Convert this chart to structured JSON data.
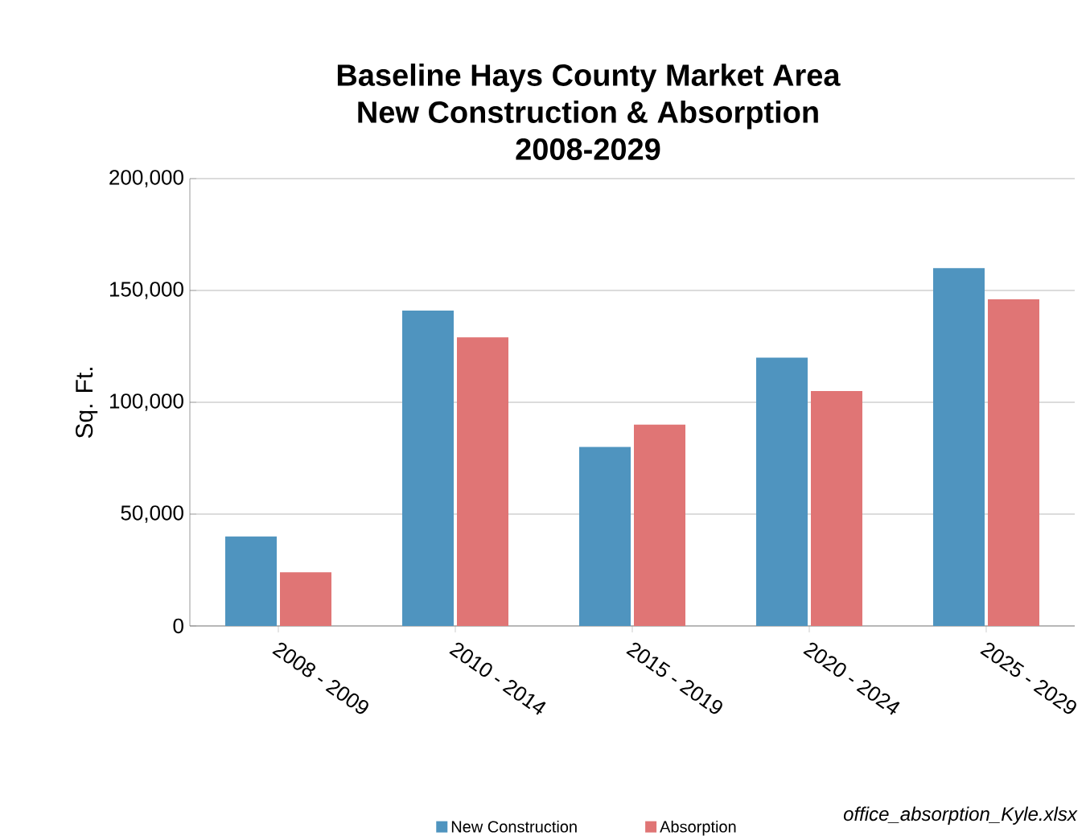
{
  "chart_data": {
    "type": "bar",
    "title": "Baseline Hays County Market Area\nNew Construction & Absorption\n2008-2029",
    "ylabel": "Sq. Ft.",
    "categories": [
      "2008 - 2009",
      "2010 - 2014",
      "2015 - 2019",
      "2020 - 2024",
      "2025 - 2029"
    ],
    "series": [
      {
        "name": "New Construction",
        "color": "#4f94bf",
        "values": [
          40000,
          141000,
          80000,
          120000,
          160000
        ]
      },
      {
        "name": "Absorption",
        "color": "#e07575",
        "values": [
          24000,
          129000,
          90000,
          105000,
          146000
        ]
      }
    ],
    "ylim": [
      0,
      200000
    ],
    "yticks": [
      {
        "value": 0,
        "label": "0"
      },
      {
        "value": 50000,
        "label": "50,000"
      },
      {
        "value": 100000,
        "label": "100,000"
      },
      {
        "value": 150000,
        "label": "150,000"
      },
      {
        "value": 200000,
        "label": "200,000"
      }
    ],
    "grid": "y",
    "legend": "bottom",
    "annotations": [
      "office_absorption_Kyle.xlsx"
    ]
  }
}
